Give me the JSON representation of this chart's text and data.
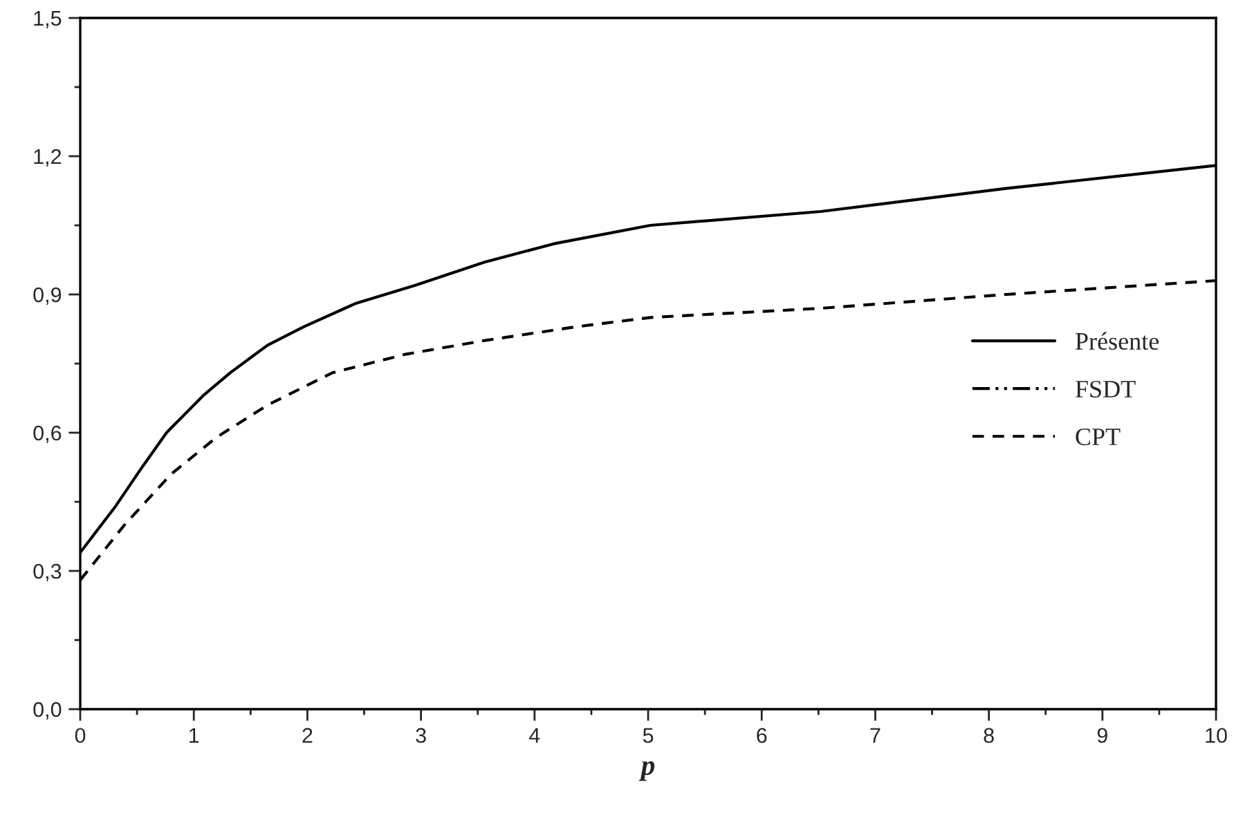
{
  "chart_data": {
    "type": "line",
    "xlabel": "p",
    "series": [
      {
        "name": "Présente",
        "color": "#000000",
        "line_style": "solid",
        "x": [
          0,
          0.31,
          0.53,
          0.76,
          1.08,
          1.32,
          1.65,
          1.97,
          2.42,
          2.95,
          3.56,
          4.17,
          5.02,
          6.52,
          8.15,
          10
        ],
        "values": [
          0.34,
          0.44,
          0.52,
          0.6,
          0.68,
          0.73,
          0.79,
          0.83,
          0.88,
          0.92,
          0.97,
          1.01,
          1.05,
          1.08,
          1.13,
          1.18
        ]
      },
      {
        "name": "FSDT",
        "color": "#000000",
        "line_style": "dashdotdot"
      },
      {
        "name": "CPT",
        "color": "#000000",
        "line_style": "dashed",
        "x": [
          0,
          0.39,
          0.8,
          1.2,
          1.65,
          2.22,
          2.86,
          3.56,
          4.37,
          5.02,
          6.52,
          8.15,
          10
        ],
        "values": [
          0.28,
          0.4,
          0.51,
          0.59,
          0.66,
          0.73,
          0.77,
          0.8,
          0.83,
          0.85,
          0.87,
          0.9,
          0.93
        ]
      }
    ],
    "xlim": [
      0,
      10
    ],
    "ylim": [
      0,
      1.5
    ],
    "xticks": [
      0,
      {
        "value": 0.5,
        "label": null
      },
      1,
      {
        "value": 1.5,
        "label": null
      },
      2,
      {
        "value": 2.5,
        "label": null
      },
      3,
      {
        "value": 3.5,
        "label": null
      },
      4,
      {
        "value": 4.5,
        "label": null
      },
      5,
      {
        "value": 5.5,
        "label": null
      },
      6,
      {
        "value": 6.5,
        "label": null
      },
      7,
      {
        "value": 7.5,
        "label": null
      },
      8,
      {
        "value": 8.5,
        "label": null
      },
      9,
      {
        "value": 9.5,
        "label": null
      },
      10
    ],
    "yticks": [
      {
        "value": 0,
        "label": "0,0"
      },
      {
        "value": 0.15,
        "label": null
      },
      {
        "value": 0.3,
        "label": "0,3"
      },
      {
        "value": 0.45,
        "label": null
      },
      {
        "value": 0.6,
        "label": "0,6"
      },
      {
        "value": 0.75,
        "label": null
      },
      {
        "value": 0.9,
        "label": "0,9"
      },
      {
        "value": 1.05,
        "label": null
      },
      {
        "value": 1.2,
        "label": "1,2"
      },
      {
        "value": 1.35,
        "label": null
      },
      {
        "value": 1.5,
        "label": "1,5"
      }
    ],
    "grid": false,
    "legend": "right",
    "marker": "none"
  }
}
